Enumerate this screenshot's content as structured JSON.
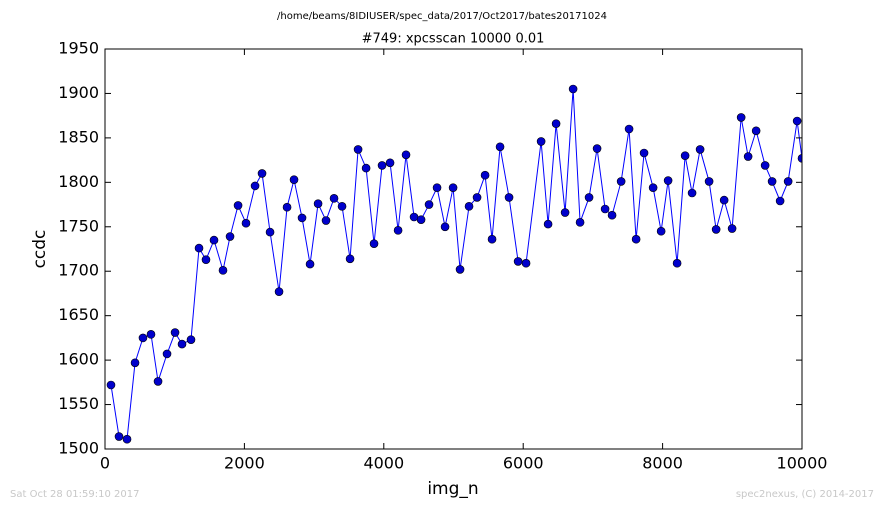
{
  "chart_data": {
    "type": "line",
    "title": "/home/beams/8IDIUSER/spec_data/2017/Oct2017/bates20171024",
    "subtitle": "#749: xpcsscan 10000 0.01",
    "xlabel": "img_n",
    "ylabel": "ccdc",
    "footer_left": "Sat Oct 28 01:59:10 2017",
    "footer_right": "spec2nexus, (C) 2014-2017",
    "x": [
      86,
      201,
      316,
      431,
      545,
      660,
      761,
      890,
      1005,
      1105,
      1234,
      1349,
      1449,
      1564,
      1693,
      1794,
      1909,
      2023,
      2153,
      2253,
      2368,
      2497,
      2612,
      2712,
      2827,
      2942,
      3057,
      3171,
      3286,
      3401,
      3516,
      3631,
      3746,
      3860,
      3975,
      4090,
      4205,
      4319,
      4434,
      4535,
      4649,
      4764,
      4879,
      4994,
      5094,
      5223,
      5338,
      5453,
      5553,
      5668,
      5797,
      5927,
      6041,
      6257,
      6357,
      6472,
      6601,
      6716,
      6816,
      6945,
      7060,
      7175,
      7275,
      7405,
      7519,
      7620,
      7734,
      7864,
      7979,
      8079,
      8208,
      8323,
      8423,
      8538,
      8667,
      8768,
      8883,
      8997,
      9127,
      9227,
      9342,
      9471,
      9571,
      9686,
      9801,
      9930,
      10000
    ],
    "series": [
      {
        "color": "#0000ff",
        "marker_color": "#0000cc",
        "values": [
          1572,
          1514,
          1511,
          1597,
          1625,
          1629,
          1576,
          1607,
          1631,
          1618,
          1623,
          1726,
          1713,
          1735,
          1701,
          1739,
          1774,
          1754,
          1796,
          1810,
          1744,
          1677,
          1772,
          1803,
          1760,
          1708,
          1776,
          1757,
          1782,
          1773,
          1714,
          1837,
          1816,
          1731,
          1819,
          1822,
          1746,
          1831,
          1761,
          1758,
          1775,
          1794,
          1750,
          1794,
          1702,
          1773,
          1783,
          1808,
          1736,
          1840,
          1783,
          1711,
          1709,
          1846,
          1753,
          1866,
          1766,
          1905,
          1755,
          1783,
          1838,
          1770,
          1763,
          1801,
          1860,
          1736,
          1833,
          1794,
          1745,
          1802,
          1709,
          1830,
          1788,
          1837,
          1801,
          1747,
          1780,
          1748,
          1873,
          1829,
          1858,
          1819,
          1801,
          1779,
          1801,
          1869,
          1827
        ]
      }
    ],
    "xlim": [
      0,
      10000
    ],
    "xticks": [
      0,
      2000,
      4000,
      6000,
      8000,
      10000
    ],
    "ylim": [
      1500,
      1950
    ],
    "yticks": [
      1500,
      1550,
      1600,
      1650,
      1700,
      1750,
      1800,
      1850,
      1900,
      1950
    ]
  }
}
